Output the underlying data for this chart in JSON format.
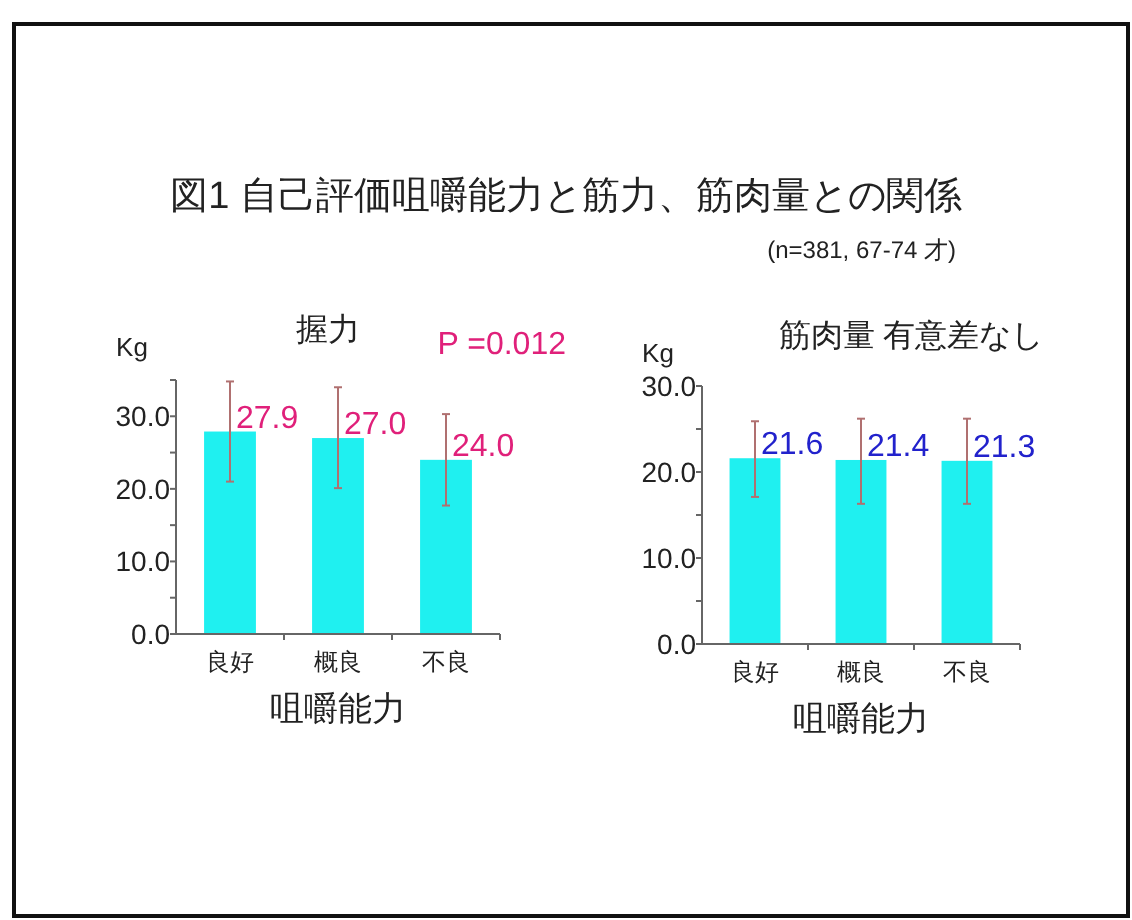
{
  "chart_data": [
    {
      "type": "bar",
      "title": "握力",
      "ylabel": "Kg",
      "xlabel": "咀嚼能力",
      "categories": [
        "良好",
        "概良",
        "不良"
      ],
      "values": [
        27.9,
        27.0,
        24.0
      ],
      "color": "#1ff0f0",
      "errors": [
        [
          21.0,
          34.8
        ],
        [
          20.1,
          34.0
        ],
        [
          17.7,
          30.3
        ]
      ],
      "ylim": [
        0,
        35
      ],
      "yticks": [
        {
          "value": 0,
          "label": "0.0"
        },
        {
          "value": 5,
          "label": null
        },
        {
          "value": 10,
          "label": "10.0"
        },
        {
          "value": 15,
          "label": null
        },
        {
          "value": 20,
          "label": "20.0"
        },
        {
          "value": 25,
          "label": null
        },
        {
          "value": 30,
          "label": "30.0"
        },
        {
          "value": 35,
          "label": null
        }
      ],
      "value_labels": [
        "27.9",
        "27.0",
        "24.0"
      ],
      "annotations": [
        "図1 自己評価咀嚼能力と筋力、筋肉量との関係",
        "(n=381, 67-74 才)",
        "P =0.012"
      ]
    },
    {
      "type": "bar",
      "title": "筋肉量 有意差なし",
      "ylabel": "Kg",
      "xlabel": "咀嚼能力",
      "categories": [
        "良好",
        "概良",
        "不良"
      ],
      "values": [
        21.6,
        21.4,
        21.3
      ],
      "color": "#1ff0f0",
      "errors": [
        [
          17.1,
          25.9
        ],
        [
          16.3,
          26.2
        ],
        [
          16.3,
          26.2
        ]
      ],
      "ylim": [
        0,
        30
      ],
      "yticks": [
        {
          "value": 0,
          "label": "0.0"
        },
        {
          "value": 5,
          "label": null
        },
        {
          "value": 10,
          "label": "10.0"
        },
        {
          "value": 15,
          "label": null
        },
        {
          "value": 20,
          "label": "20.0"
        },
        {
          "value": 25,
          "label": null
        },
        {
          "value": 30,
          "label": "30.0"
        }
      ],
      "value_labels": [
        "21.6",
        "21.4",
        "21.3"
      ]
    }
  ]
}
